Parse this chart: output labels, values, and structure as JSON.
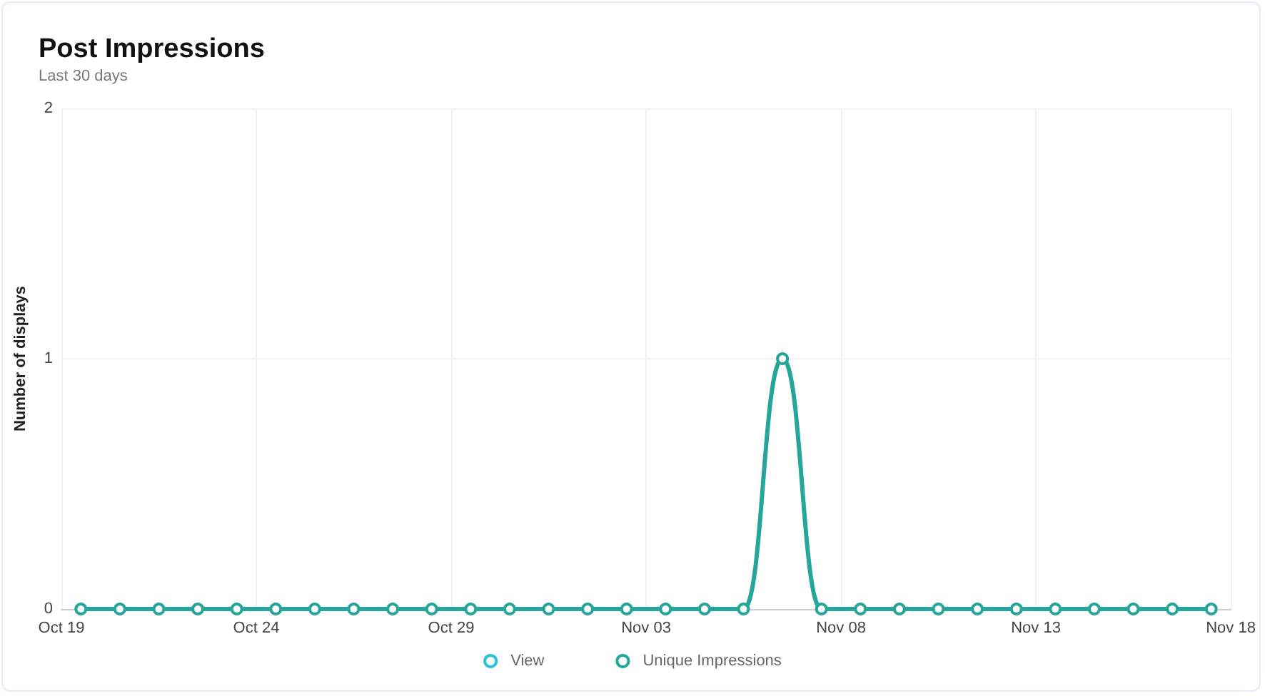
{
  "chart_data": {
    "type": "line",
    "title": "Post Impressions",
    "subtitle": "Last 30 days",
    "ylabel": "Number of displays",
    "x": [
      "--10-19T12:00",
      "--10-20T12:00",
      "--10-21T12:00",
      "--10-22T12:00",
      "--10-23T12:00",
      "--10-24T12:00",
      "--10-25T12:00",
      "--10-26T12:00",
      "--10-27T12:00",
      "--10-28T12:00",
      "--10-29T12:00",
      "--10-30T12:00",
      "--10-31T12:00",
      "--11-01T12:00",
      "--11-02T12:00",
      "--11-03T12:00",
      "--11-04T12:00",
      "--11-05T12:00",
      "--11-06T12:00",
      "--11-07T12:00",
      "--11-08T12:00",
      "--11-09T12:00",
      "--11-10T12:00",
      "--11-11T12:00",
      "--11-12T12:00",
      "--11-13T12:00",
      "--11-14T12:00",
      "--11-15T12:00",
      "--11-16T12:00",
      "--11-17T12:00"
    ],
    "series": [
      {
        "name": "View",
        "color": "#29c4dc",
        "values": [
          null,
          null,
          null,
          null,
          null,
          null,
          null,
          null,
          null,
          null,
          null,
          null,
          null,
          null,
          null,
          null,
          null,
          null,
          null,
          null,
          null,
          null,
          null,
          null,
          null,
          null,
          null,
          null,
          null,
          null
        ]
      },
      {
        "name": "Unique Impressions",
        "color": "#26a69a",
        "values": [
          0,
          0,
          0,
          0,
          0,
          0,
          0,
          0,
          0,
          0,
          0,
          0,
          0,
          0,
          0,
          0,
          0,
          0,
          1,
          0,
          0,
          0,
          0,
          0,
          0,
          0,
          0,
          0,
          0,
          0
        ]
      }
    ],
    "xlim": [
      "--10-19",
      "--11-18"
    ],
    "xticks": [
      {
        "value": "--10-19",
        "label": "Oct 19"
      },
      {
        "value": "--10-24",
        "label": "Oct 24"
      },
      {
        "value": "--10-29",
        "label": "Oct 29"
      },
      {
        "value": "--11-03",
        "label": "Nov 03"
      },
      {
        "value": "--11-08",
        "label": "Nov 08"
      },
      {
        "value": "--11-13",
        "label": "Nov 13"
      },
      {
        "value": "--11-18",
        "label": "Nov 18"
      }
    ],
    "ylim": [
      0,
      2
    ],
    "yticks": [
      0,
      1,
      2
    ],
    "grid": true,
    "legend": "bottom",
    "marker": "circle",
    "line_style": "solid"
  }
}
